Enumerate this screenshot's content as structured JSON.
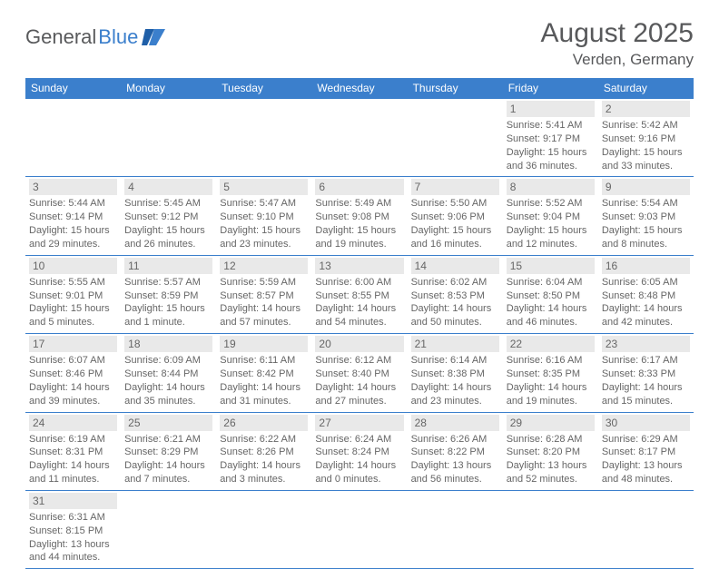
{
  "logo": {
    "word1": "General",
    "word2": "Blue"
  },
  "title": "August 2025",
  "location": "Verden, Germany",
  "columns": [
    "Sunday",
    "Monday",
    "Tuesday",
    "Wednesday",
    "Thursday",
    "Friday",
    "Saturday"
  ],
  "colors": {
    "header_bg": "#3b7fcc",
    "header_fg": "#ffffff",
    "daynum_bg": "#e9e9e9",
    "text": "#666666",
    "border": "#3b7fcc",
    "logo_gray": "#58595b",
    "logo_blue": "#3b7fcc"
  },
  "weeks": [
    [
      null,
      null,
      null,
      null,
      null,
      {
        "n": "1",
        "sr": "Sunrise: 5:41 AM",
        "ss": "Sunset: 9:17 PM",
        "d1": "Daylight: 15 hours",
        "d2": "and 36 minutes."
      },
      {
        "n": "2",
        "sr": "Sunrise: 5:42 AM",
        "ss": "Sunset: 9:16 PM",
        "d1": "Daylight: 15 hours",
        "d2": "and 33 minutes."
      }
    ],
    [
      {
        "n": "3",
        "sr": "Sunrise: 5:44 AM",
        "ss": "Sunset: 9:14 PM",
        "d1": "Daylight: 15 hours",
        "d2": "and 29 minutes."
      },
      {
        "n": "4",
        "sr": "Sunrise: 5:45 AM",
        "ss": "Sunset: 9:12 PM",
        "d1": "Daylight: 15 hours",
        "d2": "and 26 minutes."
      },
      {
        "n": "5",
        "sr": "Sunrise: 5:47 AM",
        "ss": "Sunset: 9:10 PM",
        "d1": "Daylight: 15 hours",
        "d2": "and 23 minutes."
      },
      {
        "n": "6",
        "sr": "Sunrise: 5:49 AM",
        "ss": "Sunset: 9:08 PM",
        "d1": "Daylight: 15 hours",
        "d2": "and 19 minutes."
      },
      {
        "n": "7",
        "sr": "Sunrise: 5:50 AM",
        "ss": "Sunset: 9:06 PM",
        "d1": "Daylight: 15 hours",
        "d2": "and 16 minutes."
      },
      {
        "n": "8",
        "sr": "Sunrise: 5:52 AM",
        "ss": "Sunset: 9:04 PM",
        "d1": "Daylight: 15 hours",
        "d2": "and 12 minutes."
      },
      {
        "n": "9",
        "sr": "Sunrise: 5:54 AM",
        "ss": "Sunset: 9:03 PM",
        "d1": "Daylight: 15 hours",
        "d2": "and 8 minutes."
      }
    ],
    [
      {
        "n": "10",
        "sr": "Sunrise: 5:55 AM",
        "ss": "Sunset: 9:01 PM",
        "d1": "Daylight: 15 hours",
        "d2": "and 5 minutes."
      },
      {
        "n": "11",
        "sr": "Sunrise: 5:57 AM",
        "ss": "Sunset: 8:59 PM",
        "d1": "Daylight: 15 hours",
        "d2": "and 1 minute."
      },
      {
        "n": "12",
        "sr": "Sunrise: 5:59 AM",
        "ss": "Sunset: 8:57 PM",
        "d1": "Daylight: 14 hours",
        "d2": "and 57 minutes."
      },
      {
        "n": "13",
        "sr": "Sunrise: 6:00 AM",
        "ss": "Sunset: 8:55 PM",
        "d1": "Daylight: 14 hours",
        "d2": "and 54 minutes."
      },
      {
        "n": "14",
        "sr": "Sunrise: 6:02 AM",
        "ss": "Sunset: 8:53 PM",
        "d1": "Daylight: 14 hours",
        "d2": "and 50 minutes."
      },
      {
        "n": "15",
        "sr": "Sunrise: 6:04 AM",
        "ss": "Sunset: 8:50 PM",
        "d1": "Daylight: 14 hours",
        "d2": "and 46 minutes."
      },
      {
        "n": "16",
        "sr": "Sunrise: 6:05 AM",
        "ss": "Sunset: 8:48 PM",
        "d1": "Daylight: 14 hours",
        "d2": "and 42 minutes."
      }
    ],
    [
      {
        "n": "17",
        "sr": "Sunrise: 6:07 AM",
        "ss": "Sunset: 8:46 PM",
        "d1": "Daylight: 14 hours",
        "d2": "and 39 minutes."
      },
      {
        "n": "18",
        "sr": "Sunrise: 6:09 AM",
        "ss": "Sunset: 8:44 PM",
        "d1": "Daylight: 14 hours",
        "d2": "and 35 minutes."
      },
      {
        "n": "19",
        "sr": "Sunrise: 6:11 AM",
        "ss": "Sunset: 8:42 PM",
        "d1": "Daylight: 14 hours",
        "d2": "and 31 minutes."
      },
      {
        "n": "20",
        "sr": "Sunrise: 6:12 AM",
        "ss": "Sunset: 8:40 PM",
        "d1": "Daylight: 14 hours",
        "d2": "and 27 minutes."
      },
      {
        "n": "21",
        "sr": "Sunrise: 6:14 AM",
        "ss": "Sunset: 8:38 PM",
        "d1": "Daylight: 14 hours",
        "d2": "and 23 minutes."
      },
      {
        "n": "22",
        "sr": "Sunrise: 6:16 AM",
        "ss": "Sunset: 8:35 PM",
        "d1": "Daylight: 14 hours",
        "d2": "and 19 minutes."
      },
      {
        "n": "23",
        "sr": "Sunrise: 6:17 AM",
        "ss": "Sunset: 8:33 PM",
        "d1": "Daylight: 14 hours",
        "d2": "and 15 minutes."
      }
    ],
    [
      {
        "n": "24",
        "sr": "Sunrise: 6:19 AM",
        "ss": "Sunset: 8:31 PM",
        "d1": "Daylight: 14 hours",
        "d2": "and 11 minutes."
      },
      {
        "n": "25",
        "sr": "Sunrise: 6:21 AM",
        "ss": "Sunset: 8:29 PM",
        "d1": "Daylight: 14 hours",
        "d2": "and 7 minutes."
      },
      {
        "n": "26",
        "sr": "Sunrise: 6:22 AM",
        "ss": "Sunset: 8:26 PM",
        "d1": "Daylight: 14 hours",
        "d2": "and 3 minutes."
      },
      {
        "n": "27",
        "sr": "Sunrise: 6:24 AM",
        "ss": "Sunset: 8:24 PM",
        "d1": "Daylight: 14 hours",
        "d2": "and 0 minutes."
      },
      {
        "n": "28",
        "sr": "Sunrise: 6:26 AM",
        "ss": "Sunset: 8:22 PM",
        "d1": "Daylight: 13 hours",
        "d2": "and 56 minutes."
      },
      {
        "n": "29",
        "sr": "Sunrise: 6:28 AM",
        "ss": "Sunset: 8:20 PM",
        "d1": "Daylight: 13 hours",
        "d2": "and 52 minutes."
      },
      {
        "n": "30",
        "sr": "Sunrise: 6:29 AM",
        "ss": "Sunset: 8:17 PM",
        "d1": "Daylight: 13 hours",
        "d2": "and 48 minutes."
      }
    ],
    [
      {
        "n": "31",
        "sr": "Sunrise: 6:31 AM",
        "ss": "Sunset: 8:15 PM",
        "d1": "Daylight: 13 hours",
        "d2": "and 44 minutes."
      },
      null,
      null,
      null,
      null,
      null,
      null
    ]
  ]
}
